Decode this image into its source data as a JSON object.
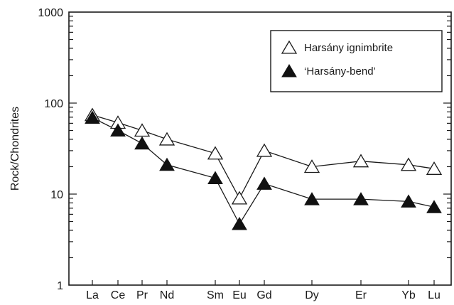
{
  "chart_data": {
    "type": "line",
    "title": "",
    "xlabel": "",
    "ylabel": "Rock/Chondrites",
    "yscale": "log",
    "ylim": [
      1,
      1000
    ],
    "y_ticks": [
      "1",
      "10",
      "100",
      "1000"
    ],
    "grid": false,
    "legend_position": "top-right",
    "categories": [
      "La",
      "Ce",
      "Pr",
      "Nd",
      "Sm",
      "Eu",
      "Gd",
      "Dy",
      "Er",
      "Yb",
      "Lu"
    ],
    "series": [
      {
        "name": "Harsány ignimbrite",
        "marker": "open-triangle",
        "color": "#1a1a1a",
        "values": [
          74,
          61,
          50,
          40,
          28,
          9,
          30,
          20,
          23,
          21,
          19
        ]
      },
      {
        "name": "‘Harsány-bend’",
        "marker": "filled-triangle",
        "color": "#1a1a1a",
        "values": [
          69,
          50,
          36,
          21,
          15,
          4.7,
          13,
          8.8,
          8.8,
          8.3,
          7.2
        ]
      }
    ]
  }
}
